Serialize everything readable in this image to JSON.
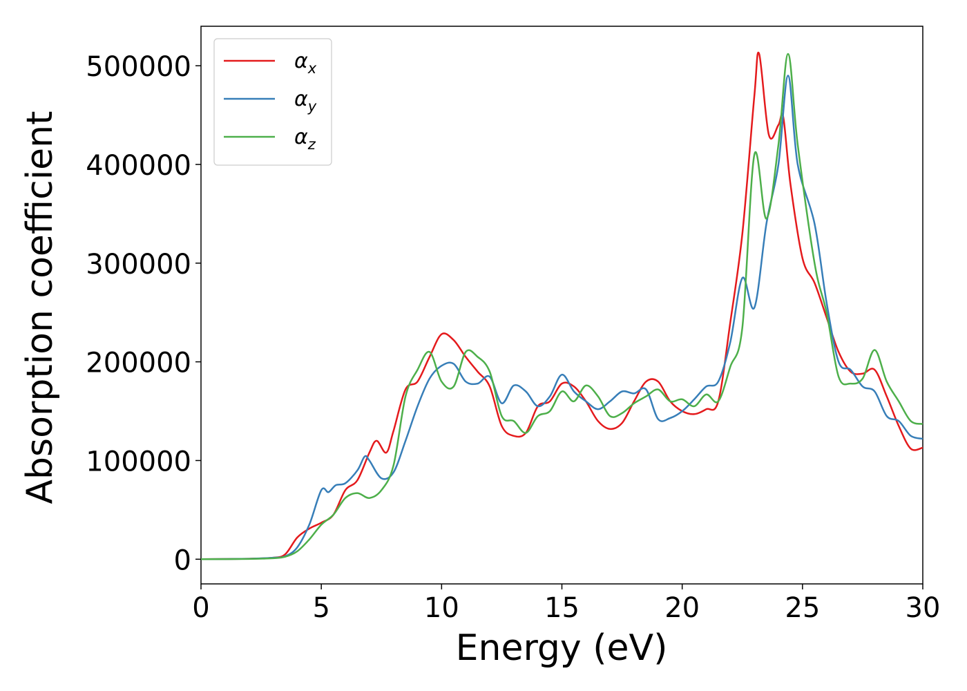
{
  "chart_data": {
    "type": "line",
    "title": "",
    "xlabel": "Energy (eV)",
    "ylabel": "Absorption coefficient",
    "xlim": [
      0,
      30
    ],
    "ylim": [
      -25000,
      540000
    ],
    "xticks": [
      0,
      5,
      10,
      15,
      20,
      25,
      30
    ],
    "xtick_labels": [
      "0",
      "5",
      "10",
      "15",
      "20",
      "25",
      "30"
    ],
    "yticks": [
      0,
      100000,
      200000,
      300000,
      400000,
      500000
    ],
    "ytick_labels": [
      "0",
      "100000",
      "200000",
      "300000",
      "400000",
      "500000"
    ],
    "grid": false,
    "legend_position": "top-left",
    "series": [
      {
        "name": "α",
        "subscript": "x",
        "color": "#e41a1c",
        "x": [
          0,
          2,
          3,
          3.5,
          4,
          4.5,
          5,
          5.5,
          6,
          6.5,
          7,
          7.3,
          7.7,
          8,
          8.5,
          9,
          9.5,
          10,
          10.5,
          11,
          11.5,
          12,
          12.5,
          13,
          13.5,
          14,
          14.5,
          15,
          15.5,
          16,
          16.5,
          17,
          17.5,
          18,
          18.5,
          19,
          19.5,
          20,
          20.5,
          21,
          21.5,
          22,
          22.5,
          23,
          23.2,
          23.6,
          24,
          24.2,
          24.5,
          25,
          25.5,
          26,
          26.5,
          27,
          27.5,
          28,
          28.5,
          29,
          29.5,
          30
        ],
        "y": [
          0,
          500,
          1500,
          5000,
          22000,
          31000,
          37000,
          45000,
          70000,
          80000,
          108000,
          120000,
          108000,
          130000,
          172000,
          180000,
          205000,
          228000,
          222000,
          205000,
          190000,
          175000,
          135000,
          125000,
          128000,
          155000,
          160000,
          178000,
          175000,
          160000,
          140000,
          132000,
          138000,
          160000,
          180000,
          180000,
          160000,
          150000,
          147000,
          152000,
          160000,
          240000,
          330000,
          470000,
          512000,
          430000,
          440000,
          448000,
          380000,
          305000,
          280000,
          245000,
          210000,
          190000,
          188000,
          192000,
          165000,
          135000,
          112000,
          113000
        ]
      },
      {
        "name": "α",
        "subscript": "y",
        "color": "#377eb8",
        "x": [
          0,
          2,
          3,
          3.5,
          4,
          4.5,
          5,
          5.3,
          5.6,
          6,
          6.5,
          6.8,
          7,
          7.5,
          8,
          8.5,
          9,
          9.5,
          10,
          10.5,
          11,
          11.5,
          12,
          12.5,
          13,
          13.5,
          14,
          14.5,
          15,
          15.5,
          16,
          16.5,
          17,
          17.5,
          18,
          18.5,
          19,
          19.5,
          20,
          20.5,
          21,
          21.5,
          22,
          22.5,
          23,
          23.5,
          24,
          24.4,
          24.8,
          25.5,
          26,
          26.5,
          27,
          27.5,
          28,
          28.5,
          29,
          29.5,
          30
        ],
        "y": [
          0,
          500,
          1500,
          3000,
          12000,
          35000,
          70000,
          68000,
          75000,
          77000,
          90000,
          104000,
          100000,
          82000,
          88000,
          120000,
          155000,
          183000,
          196000,
          198000,
          180000,
          178000,
          185000,
          158000,
          176000,
          170000,
          155000,
          165000,
          187000,
          170000,
          160000,
          152000,
          160000,
          170000,
          168000,
          172000,
          142000,
          143000,
          150000,
          162000,
          175000,
          180000,
          220000,
          285000,
          255000,
          340000,
          400000,
          490000,
          400000,
          340000,
          260000,
          200000,
          192000,
          175000,
          170000,
          145000,
          140000,
          125000,
          122000
        ]
      },
      {
        "name": "α",
        "subscript": "z",
        "color": "#4daf4a",
        "x": [
          0,
          2,
          3,
          3.5,
          4,
          4.5,
          5,
          5.5,
          6,
          6.5,
          7,
          7.5,
          8,
          8.5,
          9,
          9.5,
          10,
          10.5,
          11,
          11.5,
          12,
          12.5,
          13,
          13.5,
          14,
          14.5,
          15,
          15.5,
          16,
          16.5,
          17,
          17.5,
          18,
          18.5,
          19,
          19.5,
          20,
          20.5,
          21,
          21.5,
          22,
          22.5,
          23,
          23.5,
          24,
          24.4,
          24.8,
          25.5,
          26,
          26.5,
          27,
          27.5,
          28,
          28.5,
          29,
          29.5,
          30
        ],
        "y": [
          0,
          300,
          1000,
          2500,
          8000,
          20000,
          35000,
          45000,
          62000,
          67000,
          62000,
          70000,
          95000,
          165000,
          192000,
          210000,
          180000,
          175000,
          210000,
          205000,
          190000,
          145000,
          140000,
          128000,
          145000,
          150000,
          170000,
          160000,
          176000,
          165000,
          145000,
          148000,
          158000,
          165000,
          172000,
          160000,
          162000,
          155000,
          167000,
          160000,
          195000,
          235000,
          410000,
          345000,
          420000,
          512000,
          420000,
          300000,
          250000,
          185000,
          178000,
          183000,
          212000,
          180000,
          160000,
          140000,
          137000
        ]
      }
    ]
  }
}
